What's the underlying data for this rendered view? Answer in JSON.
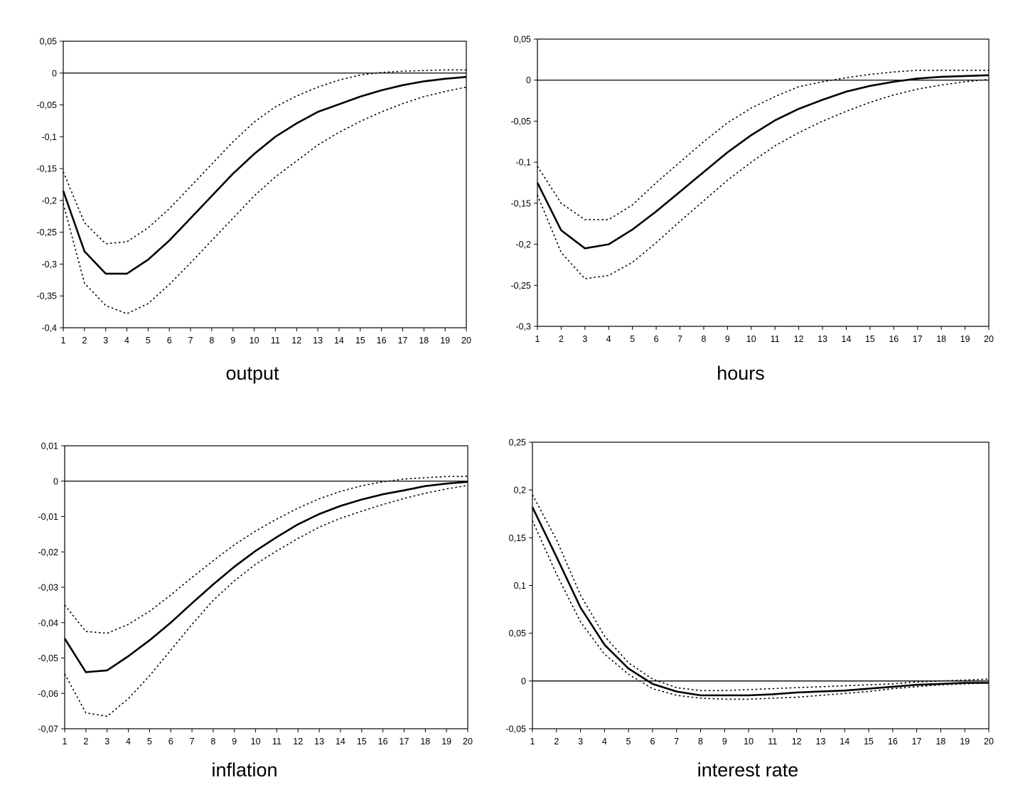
{
  "chart_data": [
    {
      "type": "line",
      "title": "output",
      "x": [
        1,
        2,
        3,
        4,
        5,
        6,
        7,
        8,
        9,
        10,
        11,
        12,
        13,
        14,
        15,
        16,
        17,
        18,
        19,
        20
      ],
      "x_tick_labels": [
        "1",
        "2",
        "3",
        "4",
        "5",
        "6",
        "7",
        "8",
        "9",
        "10",
        "11",
        "12",
        "13",
        "14",
        "15",
        "16",
        "17",
        "18",
        "19",
        "20"
      ],
      "ylim": [
        -0.4,
        0.05
      ],
      "y_ticks": [
        0.05,
        0,
        -0.05,
        -0.1,
        -0.15,
        -0.2,
        -0.25,
        -0.3,
        -0.35,
        -0.4
      ],
      "y_tick_labels": [
        "0,05",
        "0",
        "-0,05",
        "-0,1",
        "-0,15",
        "-0,2",
        "-0,25",
        "-0,3",
        "-0,35",
        "-0,4"
      ],
      "zero_line": true,
      "series": [
        {
          "role": "point-estimate",
          "style": "solid",
          "values": [
            -0.185,
            -0.28,
            -0.315,
            -0.315,
            -0.293,
            -0.263,
            -0.228,
            -0.193,
            -0.158,
            -0.127,
            -0.1,
            -0.079,
            -0.061,
            -0.049,
            -0.037,
            -0.027,
            -0.019,
            -0.013,
            -0.009,
            -0.006
          ]
        },
        {
          "role": "upper-band",
          "style": "dotted",
          "values": [
            -0.155,
            -0.235,
            -0.268,
            -0.265,
            -0.243,
            -0.213,
            -0.178,
            -0.143,
            -0.108,
            -0.077,
            -0.053,
            -0.036,
            -0.022,
            -0.011,
            -0.003,
            0.001,
            0.003,
            0.004,
            0.005,
            0.005
          ]
        },
        {
          "role": "lower-band",
          "style": "dotted",
          "values": [
            -0.205,
            -0.33,
            -0.365,
            -0.378,
            -0.362,
            -0.332,
            -0.298,
            -0.263,
            -0.228,
            -0.193,
            -0.163,
            -0.138,
            -0.113,
            -0.093,
            -0.076,
            -0.061,
            -0.048,
            -0.037,
            -0.029,
            -0.022
          ]
        }
      ]
    },
    {
      "type": "line",
      "title": "hours",
      "x": [
        1,
        2,
        3,
        4,
        5,
        6,
        7,
        8,
        9,
        10,
        11,
        12,
        13,
        14,
        15,
        16,
        17,
        18,
        19,
        20
      ],
      "x_tick_labels": [
        "1",
        "2",
        "3",
        "4",
        "5",
        "6",
        "7",
        "8",
        "9",
        "10",
        "11",
        "12",
        "13",
        "14",
        "15",
        "16",
        "17",
        "18",
        "19",
        "20"
      ],
      "ylim": [
        -0.3,
        0.05
      ],
      "y_ticks": [
        0.05,
        0,
        -0.05,
        -0.1,
        -0.15,
        -0.2,
        -0.25,
        -0.3
      ],
      "y_tick_labels": [
        "0,05",
        "0",
        "-0,05",
        "-0,1",
        "-0,15",
        "-0,2",
        "-0,25",
        "-0,3"
      ],
      "zero_line": true,
      "series": [
        {
          "role": "point-estimate",
          "style": "solid",
          "values": [
            -0.125,
            -0.183,
            -0.205,
            -0.2,
            -0.182,
            -0.16,
            -0.136,
            -0.112,
            -0.088,
            -0.067,
            -0.049,
            -0.035,
            -0.024,
            -0.014,
            -0.007,
            -0.002,
            0.002,
            0.004,
            0.005,
            0.006
          ]
        },
        {
          "role": "upper-band",
          "style": "dotted",
          "values": [
            -0.105,
            -0.15,
            -0.17,
            -0.17,
            -0.152,
            -0.125,
            -0.1,
            -0.075,
            -0.052,
            -0.034,
            -0.02,
            -0.008,
            -0.002,
            0.003,
            0.007,
            0.01,
            0.012,
            0.012,
            0.012,
            0.012
          ]
        },
        {
          "role": "lower-band",
          "style": "dotted",
          "values": [
            -0.14,
            -0.21,
            -0.242,
            -0.238,
            -0.222,
            -0.198,
            -0.172,
            -0.147,
            -0.122,
            -0.1,
            -0.08,
            -0.064,
            -0.05,
            -0.038,
            -0.027,
            -0.018,
            -0.011,
            -0.006,
            -0.002,
            0.001
          ]
        }
      ]
    },
    {
      "type": "line",
      "title": "inflation",
      "x": [
        1,
        2,
        3,
        4,
        5,
        6,
        7,
        8,
        9,
        10,
        11,
        12,
        13,
        14,
        15,
        16,
        17,
        18,
        19,
        20
      ],
      "x_tick_labels": [
        "1",
        "2",
        "3",
        "4",
        "5",
        "6",
        "7",
        "8",
        "9",
        "10",
        "11",
        "12",
        "13",
        "14",
        "15",
        "16",
        "17",
        "18",
        "19",
        "20"
      ],
      "ylim": [
        -0.07,
        0.01
      ],
      "y_ticks": [
        0.01,
        0,
        -0.01,
        -0.02,
        -0.03,
        -0.04,
        -0.05,
        -0.06,
        -0.07
      ],
      "y_tick_labels": [
        "0,01",
        "0",
        "-0,01",
        "-0,02",
        "-0,03",
        "-0,04",
        "-0,05",
        "-0,06",
        "-0,07"
      ],
      "zero_line": true,
      "series": [
        {
          "role": "point-estimate",
          "style": "solid",
          "values": [
            -0.0445,
            -0.054,
            -0.0535,
            -0.0495,
            -0.045,
            -0.04,
            -0.0345,
            -0.0292,
            -0.0242,
            -0.0197,
            -0.0158,
            -0.0122,
            -0.0093,
            -0.007,
            -0.0052,
            -0.0037,
            -0.0026,
            -0.0014,
            -0.0007,
            -0.0002
          ]
        },
        {
          "role": "upper-band",
          "style": "dotted",
          "values": [
            -0.035,
            -0.0425,
            -0.043,
            -0.0405,
            -0.0368,
            -0.0322,
            -0.0272,
            -0.0225,
            -0.018,
            -0.0141,
            -0.0107,
            -0.0076,
            -0.005,
            -0.0029,
            -0.0013,
            -0.0002,
            0.0006,
            0.001,
            0.0013,
            0.0014
          ]
        },
        {
          "role": "lower-band",
          "style": "dotted",
          "values": [
            -0.0545,
            -0.0655,
            -0.0665,
            -0.0615,
            -0.055,
            -0.0478,
            -0.0405,
            -0.0337,
            -0.0282,
            -0.0235,
            -0.0197,
            -0.0162,
            -0.013,
            -0.0105,
            -0.0085,
            -0.0066,
            -0.0049,
            -0.0034,
            -0.0022,
            -0.0012
          ]
        }
      ]
    },
    {
      "type": "line",
      "title": "interest rate",
      "x": [
        1,
        2,
        3,
        4,
        5,
        6,
        7,
        8,
        9,
        10,
        11,
        12,
        13,
        14,
        15,
        16,
        17,
        18,
        19,
        20
      ],
      "x_tick_labels": [
        "1",
        "2",
        "3",
        "4",
        "5",
        "6",
        "7",
        "8",
        "9",
        "10",
        "11",
        "12",
        "13",
        "14",
        "15",
        "16",
        "17",
        "18",
        "19",
        "20"
      ],
      "ylim": [
        -0.05,
        0.25
      ],
      "y_ticks": [
        0.25,
        0.2,
        0.15,
        0.1,
        0.05,
        0,
        -0.05
      ],
      "y_tick_labels": [
        "0,25",
        "0,2",
        "0,15",
        "0,1",
        "0,05",
        "0",
        "-0,05"
      ],
      "zero_line": true,
      "series": [
        {
          "role": "point-estimate",
          "style": "solid",
          "values": [
            0.182,
            0.13,
            0.077,
            0.038,
            0.013,
            -0.003,
            -0.011,
            -0.015,
            -0.015,
            -0.015,
            -0.014,
            -0.012,
            -0.011,
            -0.01,
            -0.008,
            -0.006,
            -0.004,
            -0.003,
            -0.002,
            -0.002
          ]
        },
        {
          "role": "upper-band",
          "style": "dotted",
          "values": [
            0.195,
            0.148,
            0.09,
            0.047,
            0.019,
            0.002,
            -0.007,
            -0.01,
            -0.01,
            -0.009,
            -0.008,
            -0.007,
            -0.006,
            -0.005,
            -0.004,
            -0.003,
            -0.001,
            0,
            0.001,
            0.002
          ]
        },
        {
          "role": "lower-band",
          "style": "dotted",
          "values": [
            0.168,
            0.112,
            0.062,
            0.028,
            0.007,
            -0.008,
            -0.015,
            -0.018,
            -0.019,
            -0.019,
            -0.018,
            -0.017,
            -0.015,
            -0.013,
            -0.011,
            -0.008,
            -0.006,
            -0.004,
            -0.003,
            -0.002
          ]
        }
      ]
    }
  ]
}
